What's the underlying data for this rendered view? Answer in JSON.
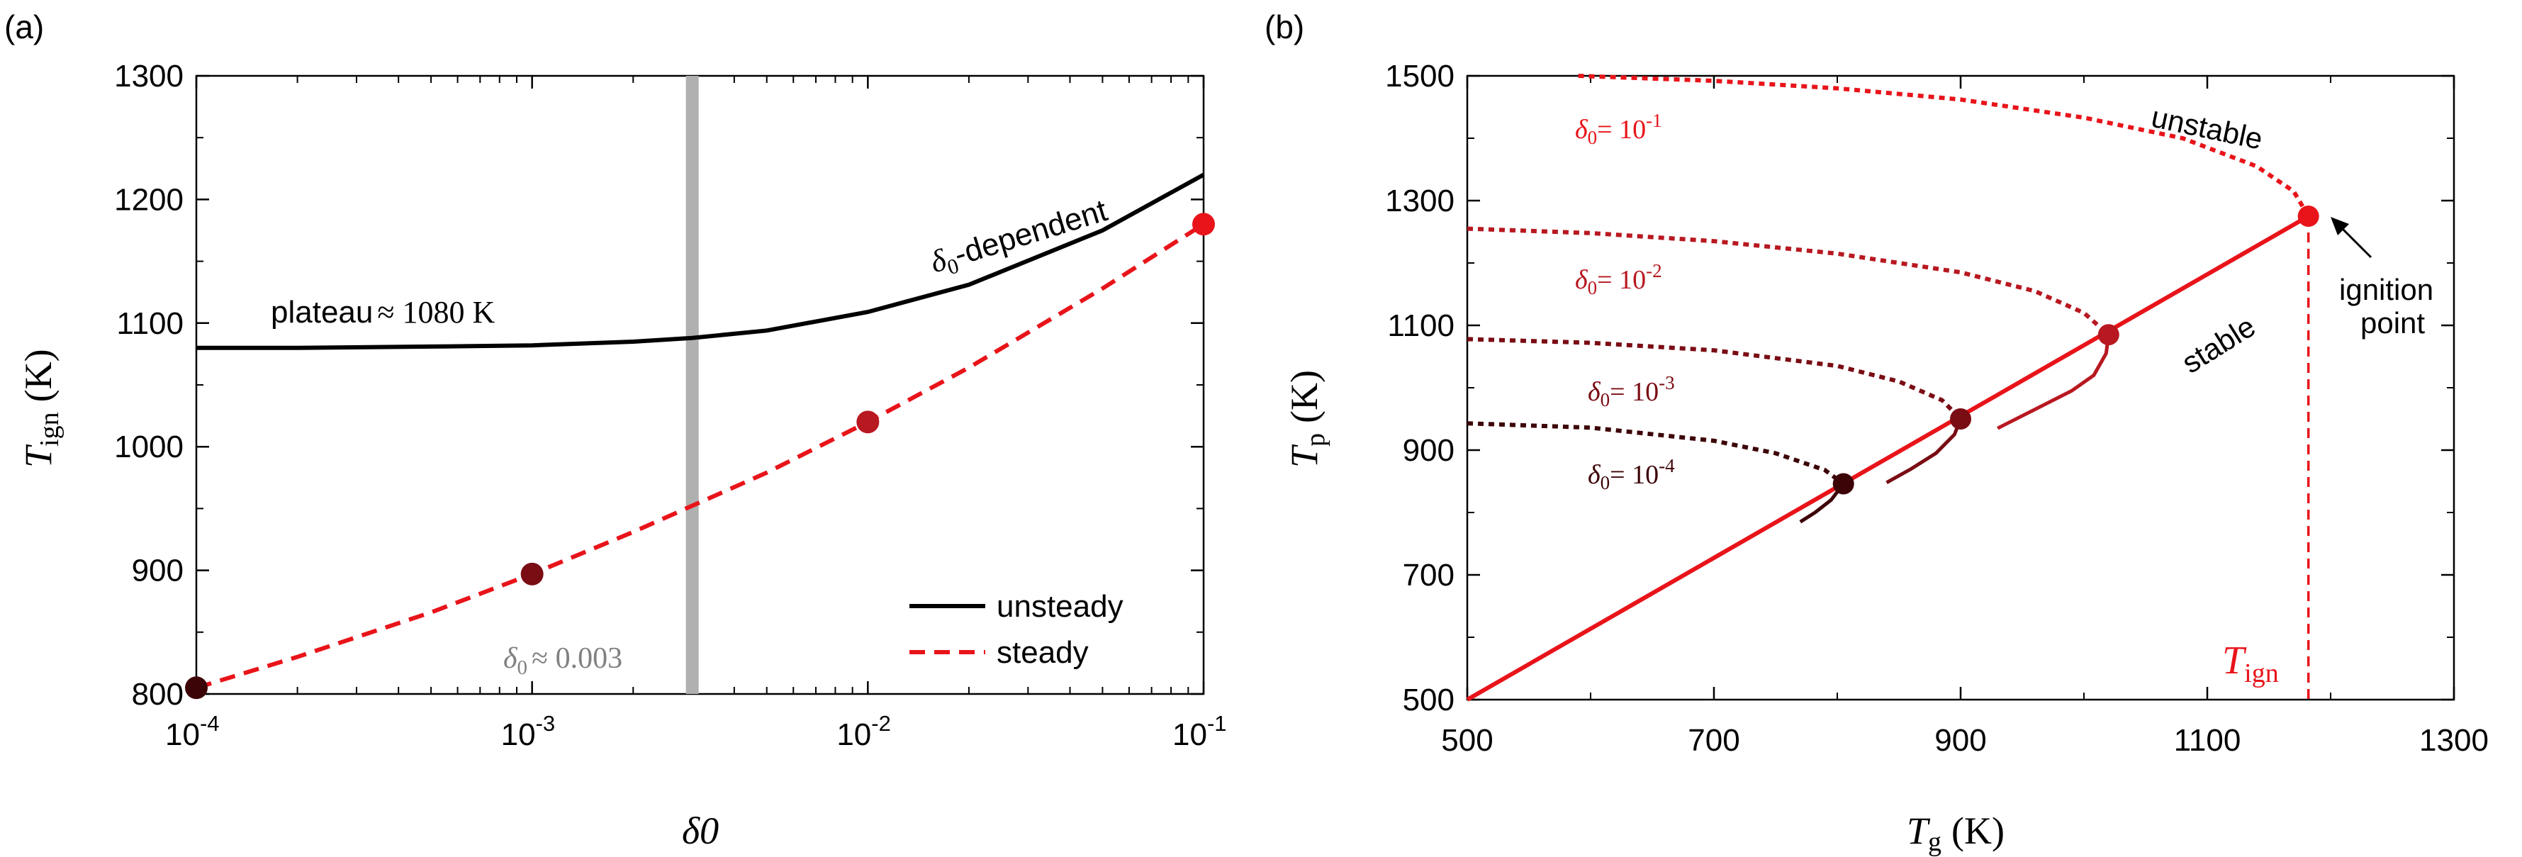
{
  "chart_data": [
    {
      "panel_label": "(a)",
      "type": "line",
      "xscale": "log",
      "xlim": [
        0.0001,
        0.1
      ],
      "ylim": [
        800,
        1300
      ],
      "xlabel": "δ0",
      "ylabel_main": "T",
      "ylabel_sub": "ign",
      "ylabel_unit": "(K)",
      "xtick_base": "10",
      "xticks": [
        {
          "value": 0.0001,
          "exp": "-4"
        },
        {
          "value": 0.001,
          "exp": "-3"
        },
        {
          "value": 0.01,
          "exp": "-2"
        },
        {
          "value": 0.1,
          "exp": "-1"
        }
      ],
      "yticks": [
        {
          "value": 800,
          "label": "800"
        },
        {
          "value": 900,
          "label": "900"
        },
        {
          "value": 1000,
          "label": "1000"
        },
        {
          "value": 1100,
          "label": "1100"
        },
        {
          "value": 1200,
          "label": "1200"
        },
        {
          "value": 1300,
          "label": "1300"
        }
      ],
      "grid": false,
      "legend_position": "bottom-right",
      "series": [
        {
          "name": "unsteady",
          "style": "solid",
          "color": "#000000",
          "x": [
            0.0001,
            0.0002,
            0.0005,
            0.001,
            0.002,
            0.003,
            0.005,
            0.01,
            0.02,
            0.05,
            0.1
          ],
          "y": [
            1080,
            1080,
            1081,
            1082,
            1085,
            1088,
            1094,
            1109,
            1131,
            1175,
            1220
          ]
        },
        {
          "name": "steady",
          "style": "dashed",
          "color": "#e8141a",
          "x": [
            0.0001,
            0.0002,
            0.0005,
            0.001,
            0.002,
            0.005,
            0.01,
            0.02,
            0.05,
            0.1
          ],
          "y": [
            805,
            830,
            866,
            897,
            931,
            979,
            1020,
            1064,
            1128,
            1180
          ]
        }
      ],
      "markers": [
        {
          "x": 0.0001,
          "y": 805,
          "color": "#3d0408"
        },
        {
          "x": 0.001,
          "y": 897,
          "color": "#7a0c14"
        },
        {
          "x": 0.01,
          "y": 1020,
          "color": "#b81820"
        },
        {
          "x": 0.1,
          "y": 1180,
          "color": "#e8141a"
        }
      ],
      "vline": {
        "x": 0.003,
        "color": "#b0b0b0"
      },
      "annotations": {
        "plateau_text": "plateau",
        "plateau_value": "≈ 1080 K",
        "dependent_delta": "δ",
        "dependent_sub": "0",
        "dependent_text": "-dependent",
        "vline_delta": "δ",
        "vline_sub": "0",
        "vline_value": "≈ 0.003"
      }
    },
    {
      "panel_label": "(b)",
      "type": "line",
      "xlim": [
        500,
        1300
      ],
      "ylim": [
        500,
        1500
      ],
      "xlabel_main": "T",
      "xlabel_sub": "g",
      "xlabel_unit": "(K)",
      "ylabel_main": "T",
      "ylabel_sub": "p",
      "ylabel_unit": "(K)",
      "xticks": [
        500,
        700,
        900,
        1100,
        1300
      ],
      "yticks": [
        500,
        700,
        900,
        1100,
        1300,
        1500
      ],
      "grid": false,
      "stable_line": {
        "color": "#e8141a",
        "x": [
          500,
          1182
        ],
        "y": [
          500,
          1275
        ]
      },
      "curves": [
        {
          "delta_label": "δ0 = 10-1",
          "color": "#e8141a",
          "unstable_x": [
            590,
            700,
            800,
            900,
            1000,
            1080,
            1140,
            1170,
            1182
          ],
          "unstable_y": [
            1500,
            1492,
            1480,
            1462,
            1433,
            1400,
            1355,
            1315,
            1275
          ],
          "stable_x": [],
          "stable_y": [],
          "marker": {
            "x": 1182,
            "y": 1275
          }
        },
        {
          "delta_label": "δ0 = 10-2",
          "color": "#b81820",
          "unstable_x": [
            500,
            600,
            700,
            800,
            900,
            960,
            1000,
            1020
          ],
          "unstable_y": [
            1255,
            1248,
            1235,
            1215,
            1185,
            1155,
            1120,
            1085
          ],
          "stable_x": [
            1020,
            1018,
            1008,
            990,
            960,
            930
          ],
          "stable_y": [
            1085,
            1055,
            1020,
            995,
            965,
            935
          ],
          "marker": {
            "x": 1020,
            "y": 1085
          }
        },
        {
          "delta_label": "δ0 = 10-3",
          "color": "#7a0c14",
          "unstable_x": [
            500,
            600,
            700,
            800,
            850,
            885,
            900
          ],
          "unstable_y": [
            1078,
            1072,
            1060,
            1035,
            1010,
            980,
            950
          ],
          "stable_x": [
            900,
            895,
            880,
            860,
            840
          ],
          "stable_y": [
            950,
            925,
            895,
            870,
            848
          ],
          "marker": {
            "x": 900,
            "y": 950
          }
        },
        {
          "delta_label": "δ0 = 10-4",
          "color": "#3d0408",
          "unstable_x": [
            500,
            600,
            700,
            750,
            790,
            805
          ],
          "unstable_y": [
            943,
            936,
            915,
            895,
            868,
            846
          ],
          "stable_x": [
            805,
            795,
            782,
            770
          ],
          "stable_y": [
            846,
            820,
            800,
            785
          ],
          "marker": {
            "x": 805,
            "y": 846
          }
        }
      ],
      "ignition_vline": {
        "x": 1182,
        "color": "#e8141a"
      },
      "annotations": {
        "unstable": "unstable",
        "stable": "stable",
        "ignition_line1": "ignition",
        "ignition_line2": "point",
        "tign_main": "T",
        "tign_sub": "ign"
      }
    }
  ],
  "legend": {
    "unsteady": "unsteady",
    "steady": "steady"
  },
  "labels": {
    "delta_symbol": "δ",
    "delta_sub": "0",
    "eq": "= 10"
  }
}
